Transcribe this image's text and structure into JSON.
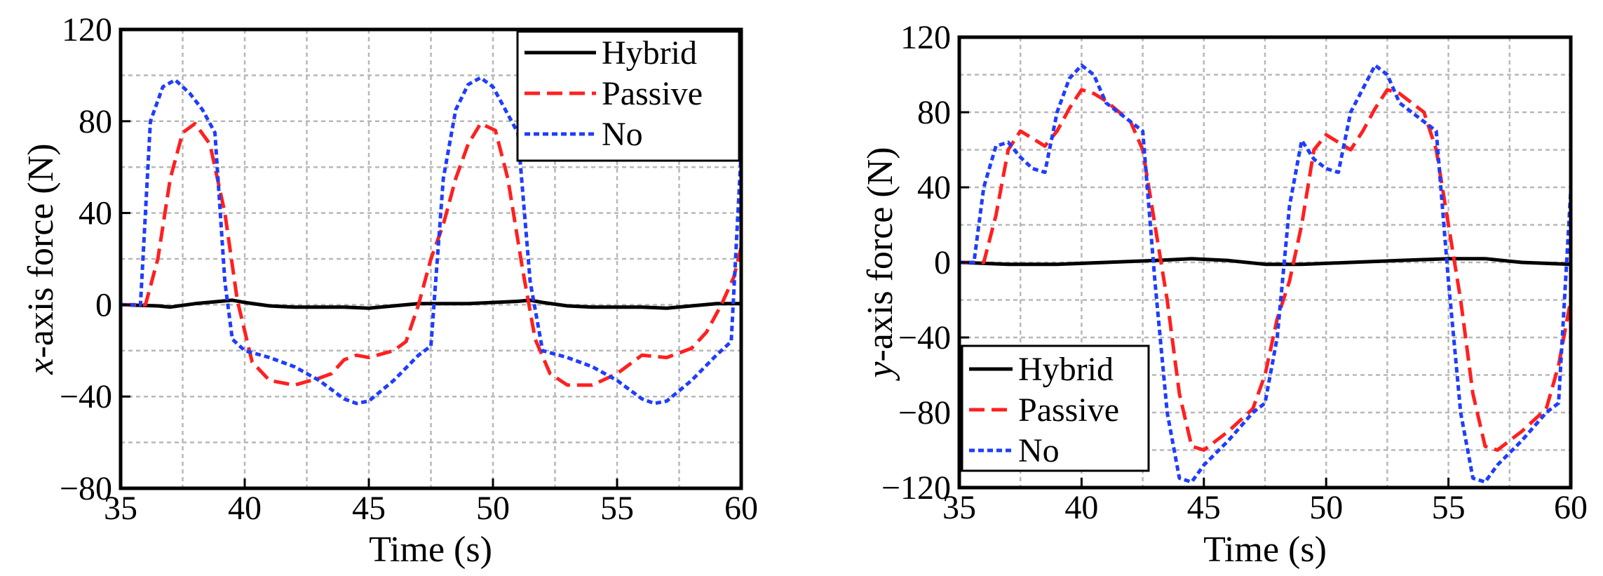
{
  "chart_data": [
    {
      "type": "line",
      "ylabel_var": "x",
      "ylabel_rest": "-axis force (N)",
      "xlabel": "Time (s)",
      "xlim": [
        35,
        60
      ],
      "ylim": [
        -80,
        120
      ],
      "xticks": [
        35,
        40,
        45,
        50,
        55,
        60
      ],
      "yticks": [
        -80,
        -40,
        0,
        40,
        80,
        120
      ],
      "ytick_labels": [
        "−80",
        "−40",
        "0",
        "40",
        "80",
        "120"
      ],
      "legend_position": "top-right",
      "grid": true,
      "series": [
        {
          "name": "Hybrid",
          "color": "#000000",
          "style": "solid",
          "x": [
            35,
            36.5,
            37,
            38,
            39,
            39.5,
            40,
            41,
            42,
            43,
            44,
            45,
            46,
            47,
            48,
            49,
            50,
            51,
            51.5,
            52,
            53,
            54,
            55,
            56,
            57,
            58,
            59,
            60
          ],
          "y": [
            0,
            -0.5,
            -1,
            0.5,
            1.5,
            2,
            1,
            -0.5,
            -1,
            -1,
            -1,
            -1.5,
            -0.5,
            0.5,
            0.5,
            0.5,
            1,
            1.5,
            2,
            1,
            -0.5,
            -1,
            -1,
            -1,
            -1.5,
            -0.5,
            0.5,
            0.5
          ]
        },
        {
          "name": "Passive",
          "color": "#ff2020",
          "style": "dashed",
          "x": [
            35,
            36,
            36.5,
            37,
            37.5,
            38,
            38.6,
            39.2,
            39.7,
            40.3,
            41,
            42,
            43,
            43.5,
            44,
            44.5,
            45,
            46,
            46.5,
            47,
            47.5,
            48,
            48.5,
            49,
            49.5,
            50.1,
            50.6,
            51.2,
            51.7,
            52.3,
            53,
            54,
            55,
            56,
            57,
            58,
            58.6,
            59.2,
            59.7,
            60
          ],
          "y": [
            0,
            0,
            20,
            55,
            75,
            79,
            70,
            40,
            2,
            -25,
            -33,
            -35,
            -32,
            -30,
            -24,
            -22,
            -23,
            -20,
            -16,
            0,
            20,
            35,
            55,
            70,
            79,
            76,
            55,
            15,
            -15,
            -30,
            -35,
            -35,
            -30,
            -22,
            -23,
            -19,
            -12,
            0,
            12,
            25
          ]
        },
        {
          "name": "No",
          "color": "#1f3dff",
          "style": "dotted",
          "x": [
            35,
            35.8,
            36.2,
            36.7,
            37.2,
            37.8,
            38.3,
            38.8,
            39.2,
            39.5,
            40,
            41,
            42,
            43,
            44,
            44.5,
            45,
            46,
            47,
            47.5,
            48,
            48.5,
            49,
            49.5,
            50,
            50.5,
            51,
            51.5,
            52,
            53,
            54,
            55,
            56,
            56.5,
            57,
            58,
            59,
            59.6,
            60
          ],
          "y": [
            0,
            0,
            80,
            95,
            98,
            92,
            85,
            75,
            10,
            -15,
            -20,
            -23,
            -27,
            -33,
            -41,
            -43,
            -42,
            -33,
            -22,
            -18,
            55,
            85,
            96,
            99,
            95,
            85,
            75,
            10,
            -20,
            -23,
            -27,
            -33,
            -41,
            -43,
            -42,
            -33,
            -22,
            -16,
            67
          ]
        }
      ]
    },
    {
      "type": "line",
      "ylabel_var": "y",
      "ylabel_rest": "-axis force (N)",
      "xlabel": "Time (s)",
      "xlim": [
        35,
        60
      ],
      "ylim": [
        -120,
        120
      ],
      "xticks": [
        35,
        40,
        45,
        50,
        55,
        60
      ],
      "yticks": [
        -120,
        -80,
        -40,
        0,
        40,
        80,
        120
      ],
      "ytick_labels": [
        "−120",
        "−80",
        "−40",
        "0",
        "40",
        "80",
        "120"
      ],
      "legend_position": "bottom-left",
      "grid": true,
      "series": [
        {
          "name": "Hybrid",
          "color": "#000000",
          "style": "solid",
          "x": [
            35,
            37,
            39,
            41,
            43,
            44.5,
            46,
            47.5,
            49,
            51,
            53,
            55,
            56.5,
            58,
            60
          ],
          "y": [
            0,
            -1,
            -1,
            0,
            1,
            2,
            1,
            -1,
            -1,
            0,
            1,
            2,
            2,
            0,
            -1
          ]
        },
        {
          "name": "Passive",
          "color": "#ff2020",
          "style": "dashed",
          "x": [
            35,
            36,
            36.5,
            37,
            37.5,
            38,
            38.5,
            39,
            39.5,
            40,
            40.5,
            41,
            42,
            42.5,
            43,
            43.5,
            44,
            44.5,
            45,
            46,
            47,
            47.5,
            48,
            48.5,
            49,
            49.5,
            50,
            50.5,
            51,
            51.5,
            52,
            52.5,
            53,
            54,
            54.5,
            55,
            55.5,
            56,
            56.5,
            57,
            58,
            59,
            59.5,
            60
          ],
          "y": [
            0,
            0,
            25,
            60,
            70,
            66,
            62,
            70,
            82,
            92,
            90,
            86,
            75,
            60,
            20,
            -20,
            -70,
            -98,
            -100,
            -90,
            -78,
            -60,
            -30,
            -10,
            20,
            60,
            68,
            64,
            60,
            70,
            82,
            92,
            90,
            80,
            60,
            20,
            -20,
            -70,
            -98,
            -100,
            -90,
            -78,
            -55,
            -20
          ]
        },
        {
          "name": "No",
          "color": "#1f3dff",
          "style": "dotted",
          "x": [
            35,
            35.6,
            36,
            36.5,
            37,
            37.5,
            38,
            38.5,
            39,
            39.5,
            40,
            40.5,
            41,
            42,
            42.5,
            43,
            43.5,
            44,
            44.5,
            45,
            46,
            47,
            47.5,
            48,
            48.5,
            49,
            49.5,
            50,
            50.5,
            51,
            52,
            52.5,
            53,
            54,
            54.5,
            55,
            55.5,
            56,
            56.5,
            57,
            58,
            59,
            59.5,
            60
          ],
          "y": [
            0,
            0,
            40,
            62,
            64,
            56,
            50,
            48,
            80,
            98,
            105,
            100,
            85,
            75,
            70,
            -10,
            -80,
            -115,
            -117,
            -108,
            -95,
            -80,
            -75,
            -40,
            30,
            65,
            55,
            50,
            48,
            80,
            105,
            100,
            85,
            75,
            70,
            -10,
            -80,
            -115,
            -117,
            -108,
            -95,
            -80,
            -75,
            38
          ]
        }
      ]
    }
  ]
}
